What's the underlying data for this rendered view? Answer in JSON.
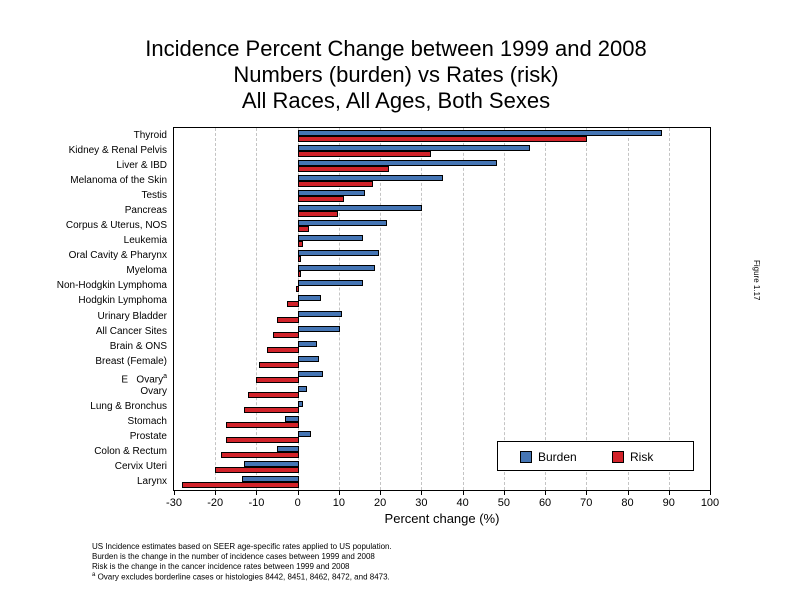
{
  "title": {
    "line1": "Incidence Percent Change between 1999 and 2008",
    "line2": "Numbers (burden) vs Rates (risk)",
    "line3": "All Races, All Ages, Both Sexes"
  },
  "figure_label": "Figure 1.17",
  "x_axis_label": "Percent change (%)",
  "legend": {
    "items": [
      {
        "label": "Burden",
        "color": "#4575b4"
      },
      {
        "label": "Risk",
        "color": "#d2232a"
      }
    ]
  },
  "footnotes": [
    {
      "text": "US Incidence estimates based on SEER age-specific rates applied to US population."
    },
    {
      "text": "Burden is the change in the number of incidence cases between 1999 and 2008"
    },
    {
      "text": "Risk is the change in the cancer incidence rates between 1999 and 2008"
    },
    {
      "sup": "a",
      "text": "Ovary excludes borderline cases or histologies 8442, 8451, 8462, 8472, and 8473."
    }
  ],
  "chart_data": {
    "type": "bar",
    "orientation": "horizontal",
    "title": "Incidence Percent Change between 1999 and 2008 — Numbers (burden) vs Rates (risk) — All Races, All Ages, Both Sexes",
    "xlabel": "Percent change (%)",
    "ylabel": "",
    "xlim": [
      -30,
      100
    ],
    "x_ticks": [
      -30,
      -20,
      -10,
      0,
      10,
      20,
      30,
      40,
      50,
      60,
      70,
      80,
      90,
      100
    ],
    "gridlines": [
      -20,
      -10,
      0,
      10,
      20,
      30,
      40,
      50,
      60,
      70,
      80,
      90
    ],
    "grid": "dashed-vertical",
    "legend_position": "bottom-right-inside",
    "categories": [
      "Thyroid",
      "Kidney & Renal Pelvis",
      "Liver & IBD",
      "Melanoma of the Skin",
      "Testis",
      "Pancreas",
      "Corpus & Uterus, NOS",
      "Leukemia",
      "Oral Cavity & Pharynx",
      "Myeloma",
      "Non-Hodgkin Lymphoma",
      "Hodgkin Lymphoma",
      "Urinary Bladder",
      "All Cancer Sites",
      "Brain & ONS",
      "Breast (Female)",
      {
        "label": "E   Ovary",
        "sup": "a"
      },
      "Ovary",
      "Lung & Bronchus",
      "Stomach",
      "Prostate",
      "Colon & Rectum",
      "Cervix Uteri",
      "Larynx"
    ],
    "series": [
      {
        "name": "Burden",
        "color": "#4575b4",
        "values": [
          88,
          56,
          48,
          35,
          16,
          30,
          21.5,
          15.5,
          19.5,
          18.5,
          15.5,
          5.5,
          10.5,
          10,
          4.5,
          5,
          6,
          2,
          1,
          -3,
          3,
          -5,
          -13,
          -13.5
        ]
      },
      {
        "name": "Risk",
        "color": "#d2232a",
        "values": [
          70,
          32,
          22,
          18,
          11,
          9.5,
          2.5,
          1,
          0.5,
          0.3,
          -0.3,
          -2.5,
          -5,
          -6,
          -7.5,
          -9.5,
          -10,
          -12,
          -13,
          -17.5,
          -17.5,
          -18.5,
          -20,
          -28
        ]
      }
    ]
  }
}
